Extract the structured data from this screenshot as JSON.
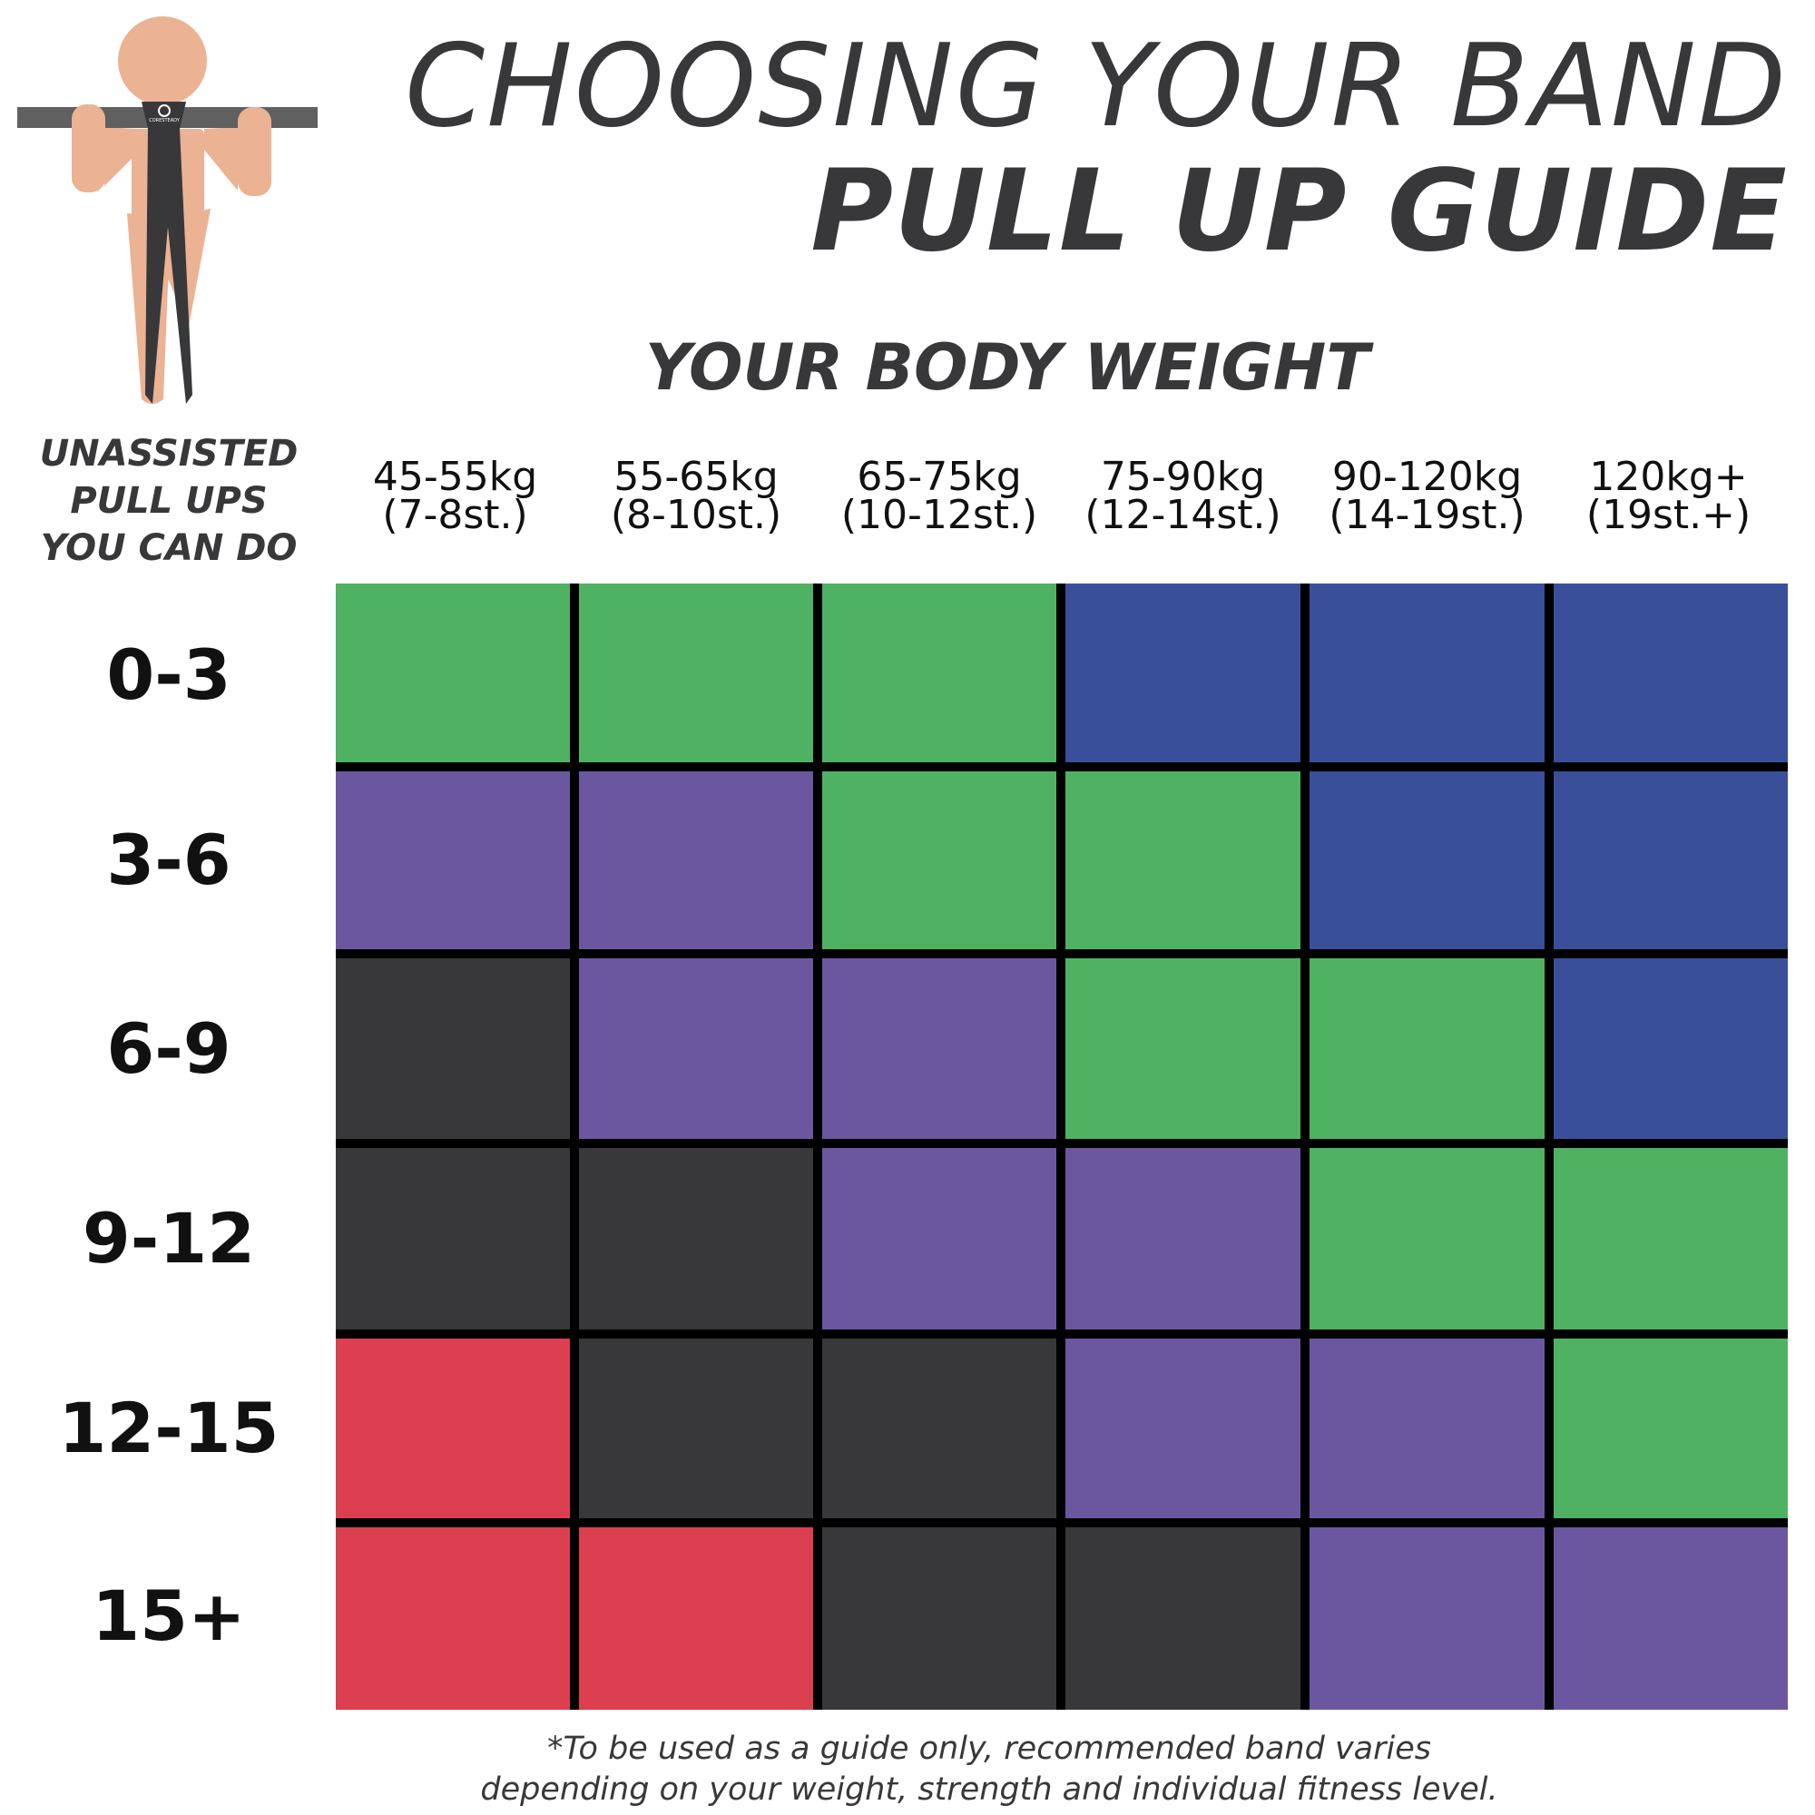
{
  "title": {
    "line1": "CHOOSING YOUR BAND",
    "line2": "PULL UP GUIDE"
  },
  "logo_text": "CORESTEADY",
  "weight_heading": "YOUR BODY WEIGHT",
  "pullups_heading": {
    "line1": "UNASSISTED",
    "line2": "PULL UPS",
    "line3": "YOU CAN DO"
  },
  "columns": [
    {
      "kg": "45-55kg",
      "st": "(7-8st.)"
    },
    {
      "kg": "55-65kg",
      "st": "(8-10st.)"
    },
    {
      "kg": "65-75kg",
      "st": "(10-12st.)"
    },
    {
      "kg": "75-90kg",
      "st": "(12-14st.)"
    },
    {
      "kg": "90-120kg",
      "st": "(14-19st.)"
    },
    {
      "kg": "120kg+",
      "st": "(19st.+)"
    }
  ],
  "rows": [
    "0-3",
    "3-6",
    "6-9",
    "9-12",
    "12-15",
    "15+"
  ],
  "colors": {
    "green": "#4fb262",
    "blue": "#3a4f9a",
    "purple": "#6b57a0",
    "black": "#38383a",
    "red": "#dc3f50",
    "text": "#38383a"
  },
  "grid": [
    [
      "green",
      "green",
      "green",
      "blue",
      "blue",
      "blue"
    ],
    [
      "purple",
      "purple",
      "green",
      "green",
      "blue",
      "blue"
    ],
    [
      "black",
      "purple",
      "purple",
      "green",
      "green",
      "blue"
    ],
    [
      "black",
      "black",
      "purple",
      "purple",
      "green",
      "green"
    ],
    [
      "red",
      "black",
      "black",
      "purple",
      "purple",
      "green"
    ],
    [
      "red",
      "red",
      "black",
      "black",
      "purple",
      "purple"
    ]
  ],
  "footnote": {
    "line1": "*To be used as a guide only, recommended band varies",
    "line2": "depending on your weight, strength and individual fitness level."
  }
}
